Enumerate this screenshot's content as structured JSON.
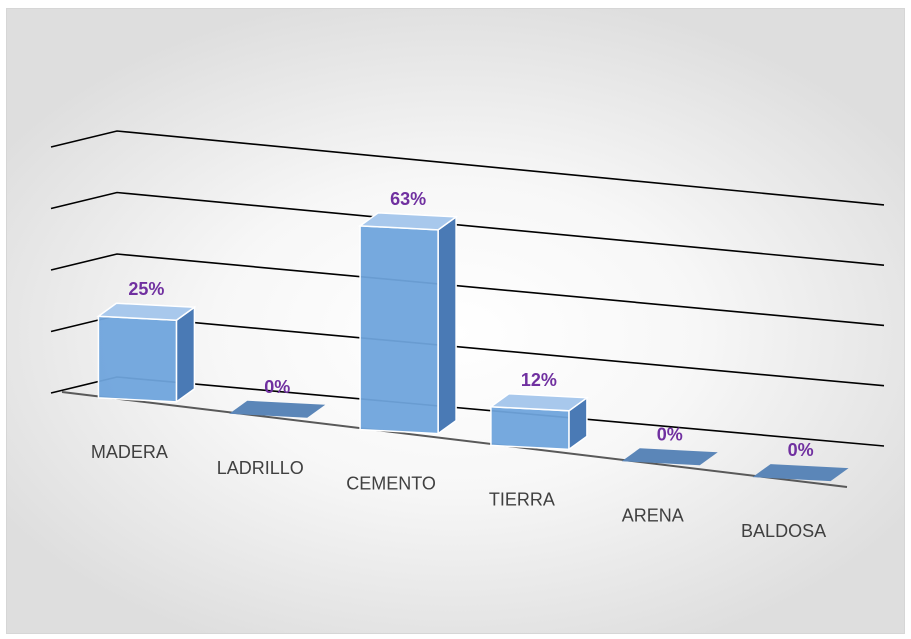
{
  "chart_data": {
    "type": "bar",
    "style": "3d-perspective",
    "categories": [
      "MADERA",
      "LADRILLO",
      "CEMENTO",
      "TIERRA",
      "ARENA",
      "BALDOSA"
    ],
    "values": [
      25,
      0,
      63,
      12,
      0,
      0
    ],
    "data_labels": [
      "25%",
      "0%",
      "63%",
      "12%",
      "0%",
      "0%"
    ],
    "title": "",
    "xlabel": "",
    "ylabel": "",
    "ylim": [
      0,
      80
    ],
    "grid": true,
    "legend": "none"
  },
  "colors": {
    "bar_front": "#6fa4dc",
    "bar_top": "#a8c8ec",
    "bar_side": "#4a7ab5",
    "bar_zero": "#5b86b8",
    "bar_edge": "#ffffff",
    "grid": "#000000",
    "data_label": "#7030a0",
    "category_label": "#404040"
  }
}
